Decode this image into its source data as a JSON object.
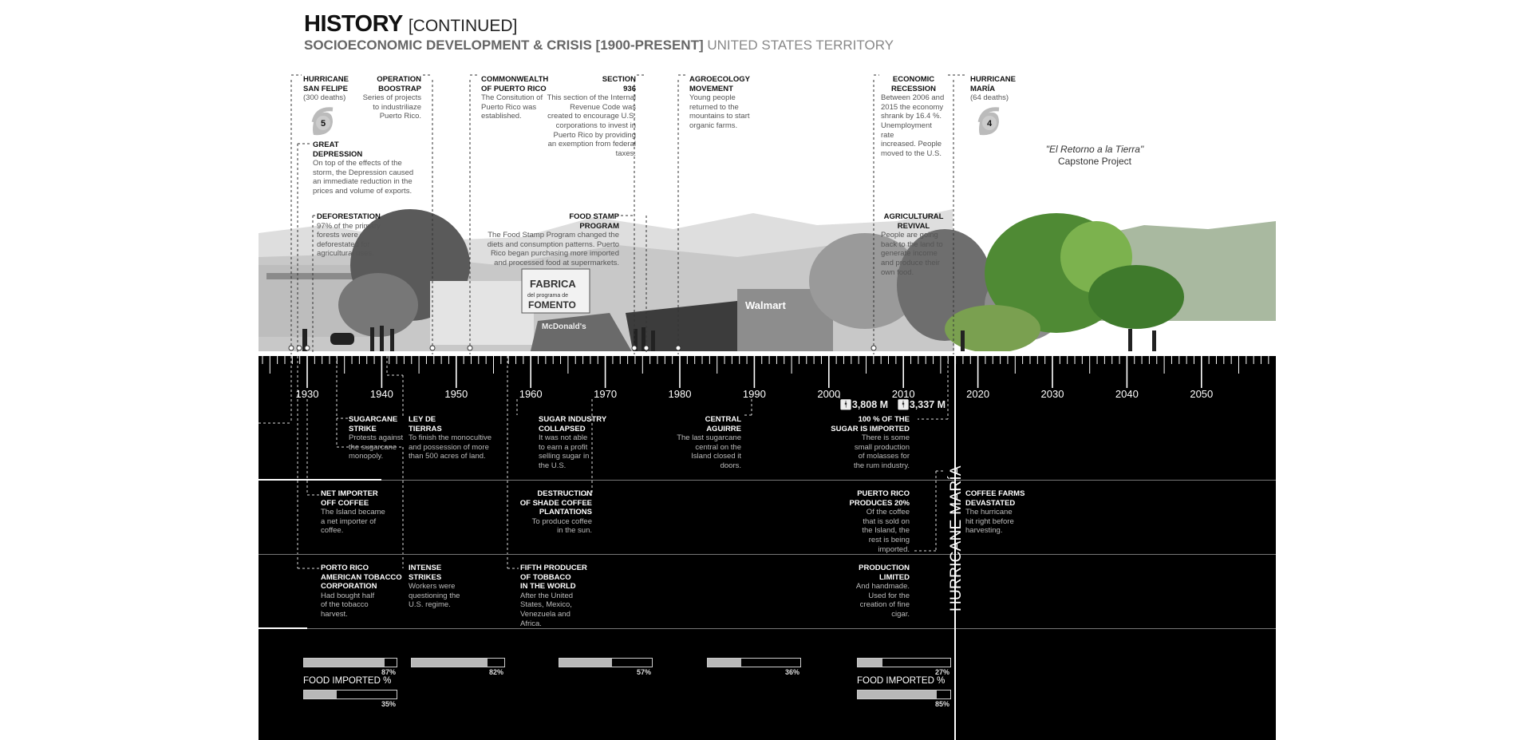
{
  "header": {
    "title": "HISTORY",
    "title_suffix": "[CONTINUED]",
    "subtitle": "SOCIOECONOMIC DEVELOPMENT & CRISIS [1900-PRESENT]",
    "subtitle_suffix": "UNITED STATES TERRITORY"
  },
  "capstone": {
    "title": "\"El Retorno a la Tierra\"",
    "subtitle": "Capstone Project"
  },
  "top_events": [
    {
      "title": "HURRICANE\nSAN FELIPE",
      "body": "(300 deaths)",
      "category": "5"
    },
    {
      "title": "OPERATION\nBOOSTRAP",
      "body": "Series of projects\nto industriliaze\nPuerto Rico."
    },
    {
      "title": "GREAT\nDEPRESSION",
      "body": "On top of the effects of the\nstorm, the Depression caused\nan immediate reduction in the\nprices and volume of exports."
    },
    {
      "title": "DEFORESTATION",
      "body": "97% of the primary\nforests were\ndeforestated for\nagricultural uses."
    },
    {
      "title": "COMMONWEALTH\nOF PUERTO RICO",
      "body": "The Consitution of\nPuerto Rico was\nestablished."
    },
    {
      "title": "SECTION\n936",
      "body": "This section of the Internal\nRevenue Code was\ncreated to encourage U.S.\ncorporations to invest in\nPuerto Rico by providing\nan exemption from federal\ntaxes."
    },
    {
      "title": "FOOD STAMP\nPROGRAM",
      "body": "The Food Stamp Program changed the\ndiets and consumption patterns. Puerto\nRico began purchasing more imported\nand processed food at supermarkets."
    },
    {
      "title": "AGROECOLOGY\nMOVEMENT",
      "body": " Young people\nreturned to the\nmountains to start\norganic farms."
    },
    {
      "title": "ECONOMIC\nRECESSION",
      "body": "Between 2006 and\n2015 the economy\nshrank by 16.4 %.\nUnemployment rate\nincreased. People\nmoved to the U.S."
    },
    {
      "title": "AGRICULTURAL\nREVIVAL",
      "body": "People are going\nback to the land to\ngenerate income\nand produce their\nown food."
    },
    {
      "title": "HURRICANE\nMARÍA",
      "body": "(64 deaths)",
      "category": "4"
    }
  ],
  "photo_signage": [
    "FABRICA",
    "del programa de",
    "FOMENTO",
    "McDonald's",
    "Walmart"
  ],
  "timeline": {
    "years": [
      "1930",
      "1940",
      "1950",
      "1960",
      "1970",
      "1980",
      "1990",
      "2000",
      "2010",
      "2020",
      "2030",
      "2040",
      "2050"
    ],
    "population": [
      "3,808 M",
      "3,337 M"
    ],
    "event_marker": "HURRICANE MARÍA"
  },
  "sugar_row": [
    {
      "title": "SUGARCANE\nSTRIKE",
      "body": "Protests against\nthe sugarcane\nmonopoly."
    },
    {
      "title": "LEY DE\nTIERRAS",
      "body": "To finish the monocultive\nand possession of more\nthan 500 acres of land."
    },
    {
      "title": "SUGAR INDUSTRY\nCOLLAPSED",
      "body": "It was not able\nto earn a profit\nselling sugar in\nthe U.S."
    },
    {
      "title": "CENTRAL\nAGUIRRE",
      "body": "The last sugarcane\ncentral on the\nIsland closed it\ndoors."
    },
    {
      "title": "100 % OF THE\nSUGAR IS IMPORTED",
      "body": "There is some\nsmall production\nof molasses for\nthe rum industry."
    }
  ],
  "coffee_row": [
    {
      "title": "NET IMPORTER\nOFF COFFEE",
      "body": "The Island became\na net importer of\ncoffee."
    },
    {
      "title": "DESTRUCTION\nOF SHADE COFFEE\nPLANTATIONS",
      "body": "To produce coffee\nin the sun."
    },
    {
      "title": "PUERTO RICO\nPRODUCES 20%",
      "body": "Of the coffee\nthat is sold on\nthe Island, the\nrest is being\nimported."
    },
    {
      "title": "COFFEE FARMS\nDEVASTATED",
      "body": "The hurricane\nhit right before\nharvesting."
    }
  ],
  "tobacco_row": [
    {
      "title": "PORTO RICO\nAMERICAN TOBACCO\nCORPORATION",
      "body": "Had bought half\nof the tobacco\nharvest."
    },
    {
      "title": "INTENSE\nSTRIKES",
      "body": "Workers were\nquestioning the\nU.S. regime."
    },
    {
      "title": "FIFTH PRODUCER\nOF TOBBACO\nIN THE WORLD",
      "body": "After the United\nStates, Mexico,\nVenezuela and\nAfrica."
    },
    {
      "title": "PRODUCTION\nLIMITED",
      "body": "And handmade.\nUsed for the\ncreation of fine\ncigar."
    }
  ],
  "bars": [
    {
      "value": 87,
      "label": "87%"
    },
    {
      "value": 82,
      "label": "82%"
    },
    {
      "value": 57,
      "label": "57%"
    },
    {
      "value": 36,
      "label": "36%"
    },
    {
      "value": 27,
      "label": "27%"
    }
  ],
  "food_imported": [
    {
      "caption": "FOOD IMPORTED %",
      "value": 35,
      "label": "35%"
    },
    {
      "caption": "FOOD IMPORTED %",
      "value": 85,
      "label": "85%"
    }
  ],
  "colors": {
    "panel": "#000000",
    "bar_fill": "#b8b8b8",
    "vegetation": "#5f9a3a"
  }
}
